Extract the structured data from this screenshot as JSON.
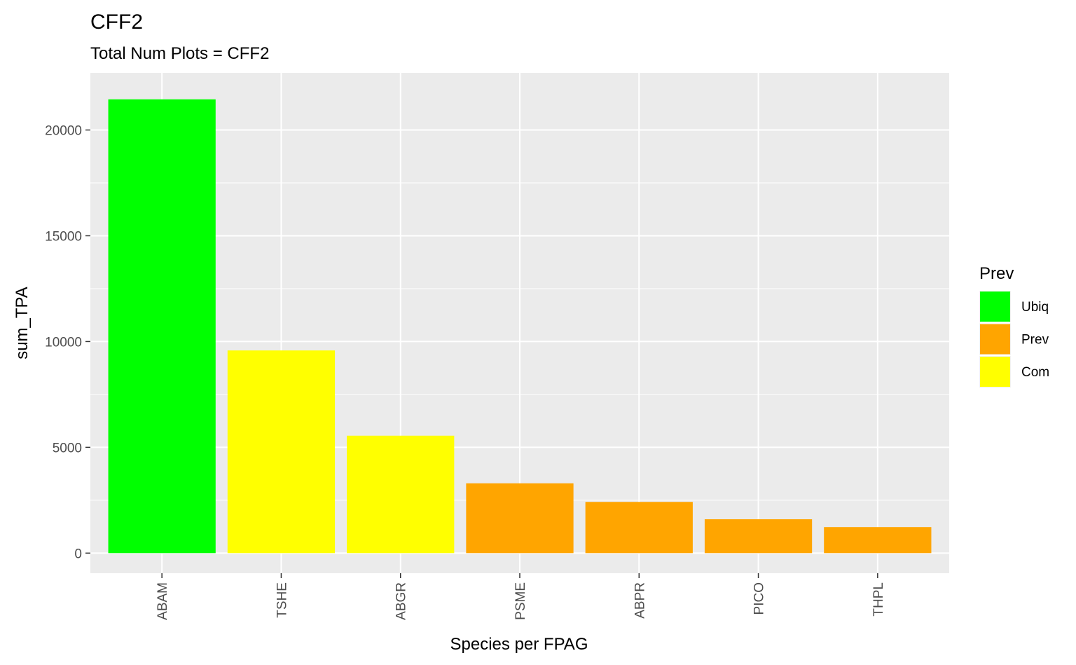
{
  "chart_data": {
    "type": "bar",
    "title": "CFF2",
    "subtitle": "Total Num Plots = CFF2",
    "xlabel": "Species per FPAG",
    "ylabel": "sum_TPA",
    "categories": [
      "ABAM",
      "TSHE",
      "ABGR",
      "PSME",
      "ABPR",
      "PICO",
      "THPL"
    ],
    "values": [
      21450,
      9580,
      5550,
      3300,
      2420,
      1600,
      1230
    ],
    "groups": [
      "Ubiq",
      "Com",
      "Com",
      "Prev",
      "Prev",
      "Prev",
      "Prev"
    ],
    "ylim": [
      -950,
      22700
    ],
    "yticks": [
      0,
      5000,
      10000,
      15000,
      20000
    ],
    "ytick_labels": [
      "0",
      "5000",
      "10000",
      "15000",
      "20000"
    ],
    "grid": true,
    "panel_background": "#ebebeb",
    "legend": {
      "title": "Prev",
      "position": "right",
      "entries": [
        {
          "label": "Ubiq",
          "color": "#00ff00"
        },
        {
          "label": "Prev",
          "color": "#ffa500"
        },
        {
          "label": "Com",
          "color": "#ffff00"
        }
      ]
    }
  }
}
